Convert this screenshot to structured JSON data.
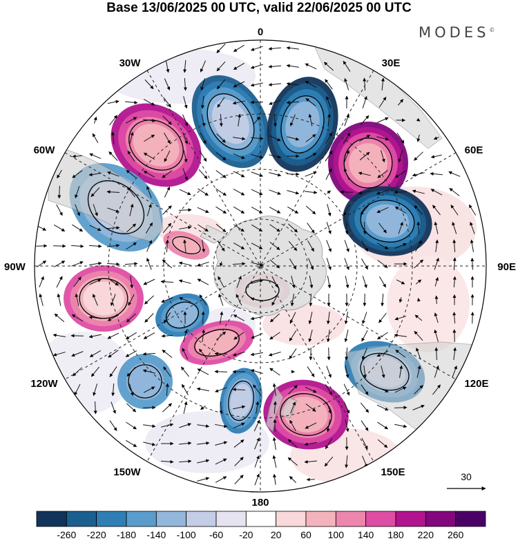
{
  "header": {
    "title": "Base 13/06/2025 00 UTC, valid 22/06/2025 00 UTC",
    "brand": "MODES",
    "brand_mark": "©"
  },
  "map": {
    "projection": "south-polar-stereographic",
    "longitude_labels": {
      "top": "0",
      "bottom": "180",
      "left": "90W",
      "right": "90E",
      "upper_left_1": "30W",
      "upper_left_2": "60W",
      "lower_left_1": "120W",
      "lower_left_2": "150W",
      "upper_right_1": "30E",
      "upper_right_2": "60E",
      "lower_right_1": "120E",
      "lower_right_2": "150E"
    },
    "wind_reference_label": "30",
    "land_color": "#dcdcdc",
    "grid_style": "dashed"
  },
  "colorbar": {
    "ticks": [
      "-260",
      "-220",
      "-180",
      "-140",
      "-100",
      "-60",
      "-20",
      "20",
      "60",
      "100",
      "140",
      "180",
      "220",
      "260"
    ],
    "colors": [
      "#12345a",
      "#1b5f8e",
      "#2f7fb6",
      "#5a9dcc",
      "#93b7db",
      "#c4cde6",
      "#e5e3f0",
      "#ffffff",
      "#f8d8da",
      "#f3b3bd",
      "#ec86ad",
      "#de4da4",
      "#b2148f",
      "#82067c",
      "#4b0066"
    ]
  },
  "anomaly_centers": [
    {
      "sign": "negative",
      "level": "-180"
    },
    {
      "sign": "positive",
      "level": "160"
    },
    {
      "sign": "negative",
      "level": "-200"
    },
    {
      "sign": "positive",
      "level": "200"
    },
    {
      "sign": "negative",
      "level": "-100"
    },
    {
      "sign": "positive",
      "level": "80"
    },
    {
      "sign": "negative",
      "level": "-200"
    },
    {
      "sign": "positive",
      "level": "140"
    },
    {
      "sign": "negative",
      "level": "-120"
    },
    {
      "sign": "positive",
      "level": "120"
    },
    {
      "sign": "negative",
      "level": "-140"
    },
    {
      "sign": "positive",
      "level": "160"
    },
    {
      "sign": "negative",
      "level": "-140"
    },
    {
      "sign": "negative",
      "level": "-80"
    },
    {
      "sign": "positive",
      "level": "100"
    }
  ]
}
